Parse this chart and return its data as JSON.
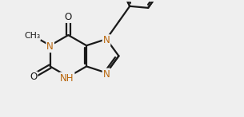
{
  "bg_color": "#efefef",
  "bond_color": "#1a1a1a",
  "bond_width": 1.6,
  "font_size": 8.5,
  "n_color": "#b8650a",
  "o_color": "#1a1a1a",
  "figsize": [
    3.05,
    1.47
  ],
  "dpi": 100,
  "xlim": [
    0,
    9.5
  ],
  "ylim": [
    0,
    4.5
  ]
}
